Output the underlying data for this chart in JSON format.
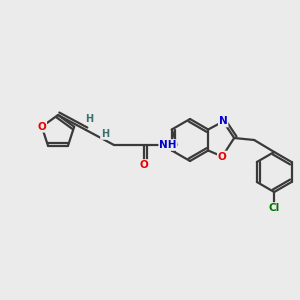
{
  "background_color": "#ebebeb",
  "bond_color": "#3a3a3a",
  "atom_colors": {
    "O": "#e60000",
    "N": "#0000cc",
    "Cl": "#007700",
    "H": "#3a7070",
    "C": "#3a3a3a"
  },
  "figsize": [
    3.0,
    3.0
  ],
  "dpi": 100,
  "lw": 1.6,
  "dlw": 1.6,
  "doff": 2.8
}
